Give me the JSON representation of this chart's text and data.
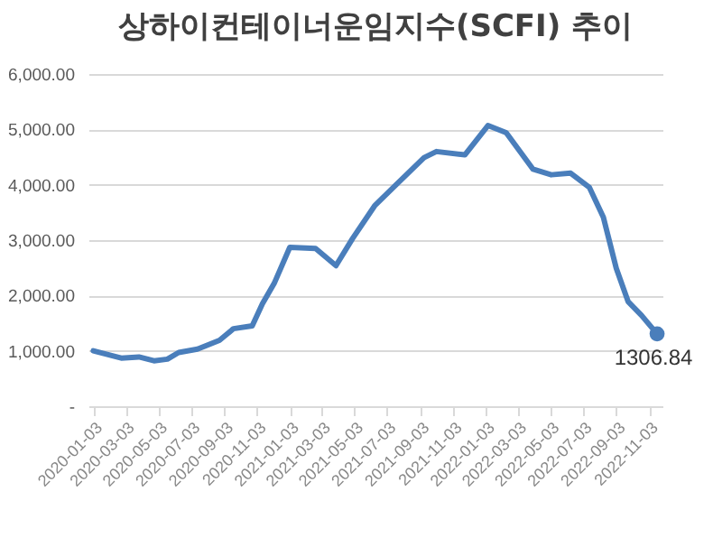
{
  "chart_data": {
    "type": "line",
    "title": "상하이컨테이너운임지수(SCFI) 추이",
    "x": [
      "2020-01-03",
      "2020-02-24",
      "2020-03-28",
      "2020-04-25",
      "2020-05-20",
      "2020-06-10",
      "2020-07-15",
      "2020-08-25",
      "2020-09-20",
      "2020-10-25",
      "2020-11-13",
      "2020-12-05",
      "2021-01-03",
      "2021-02-20",
      "2021-03-30",
      "2021-04-30",
      "2021-06-10",
      "2021-07-20",
      "2021-09-10",
      "2021-10-03",
      "2021-11-25",
      "2022-01-07",
      "2022-02-10",
      "2022-04-01",
      "2022-05-05",
      "2022-06-10",
      "2022-07-15",
      "2022-08-10",
      "2022-09-03",
      "2022-09-25",
      "2022-10-20",
      "2022-11-18"
    ],
    "series": [
      {
        "color": "#4a7ebb",
        "values": [
          1000,
          870,
          890,
          820,
          850,
          970,
          1030,
          1190,
          1400,
          1450,
          1850,
          2220,
          2870,
          2850,
          2540,
          3030,
          3620,
          4000,
          4490,
          4600,
          4540,
          5070,
          4940,
          4280,
          4180,
          4210,
          3950,
          3410,
          2490,
          1890,
          1640,
          1306.84
        ]
      }
    ],
    "xlim": [
      "2019-12-25",
      "2022-11-28"
    ],
    "xticks": [
      {
        "value": "2020-01-03",
        "label": "2020-01-03"
      },
      {
        "value": "2020-03-03",
        "label": "2020-03-03"
      },
      {
        "value": "2020-05-03",
        "label": "2020-05-03"
      },
      {
        "value": "2020-07-03",
        "label": "2020-07-03"
      },
      {
        "value": "2020-09-03",
        "label": "2020-09-03"
      },
      {
        "value": "2020-11-03",
        "label": "2020-11-03"
      },
      {
        "value": "2021-01-03",
        "label": "2021-01-03"
      },
      {
        "value": "2021-03-03",
        "label": "2021-03-03"
      },
      {
        "value": "2021-05-03",
        "label": "2021-05-03"
      },
      {
        "value": "2021-07-03",
        "label": "2021-07-03"
      },
      {
        "value": "2021-09-03",
        "label": "2021-09-03"
      },
      {
        "value": "2021-11-03",
        "label": "2021-11-03"
      },
      {
        "value": "2022-01-03",
        "label": "2022-01-03"
      },
      {
        "value": "2022-03-03",
        "label": "2022-03-03"
      },
      {
        "value": "2022-05-03",
        "label": "2022-05-03"
      },
      {
        "value": "2022-07-03",
        "label": "2022-07-03"
      },
      {
        "value": "2022-09-03",
        "label": "2022-09-03"
      },
      {
        "value": "2022-11-03",
        "label": "2022-11-03"
      }
    ],
    "ylim": [
      0,
      6000
    ],
    "yticks": [
      {
        "value": 0,
        "label": "-"
      },
      {
        "value": 1000,
        "label": "1,000.00"
      },
      {
        "value": 2000,
        "label": "2,000.00"
      },
      {
        "value": 3000,
        "label": "3,000.00"
      },
      {
        "value": 4000,
        "label": "4,000.00"
      },
      {
        "value": 5000,
        "label": "5,000.00"
      },
      {
        "value": 6000,
        "label": "6,000.00"
      }
    ],
    "grid": "y",
    "marker": "none",
    "line_style": "solid",
    "annotations": [
      {
        "text": "1306.84",
        "x": "2022-11-18",
        "y": 1306.84
      }
    ]
  }
}
